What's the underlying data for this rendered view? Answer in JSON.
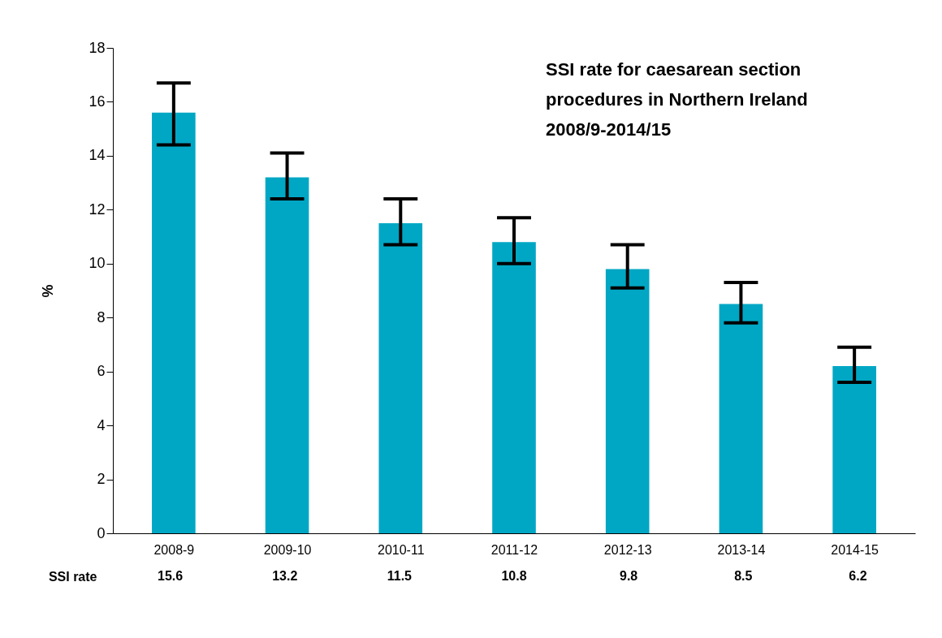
{
  "chart_data": {
    "type": "bar",
    "title": "SSI rate for caesarean section procedures in Northern Ireland 2008/9-2014/15",
    "ylabel": "%",
    "categories": [
      "2008-9",
      "2009-10",
      "2010-11",
      "2011-12",
      "2012-13",
      "2013-14",
      "2014-15"
    ],
    "series": [
      {
        "name": "SSI rate",
        "color": "#00a7c4",
        "values": [
          15.6,
          13.2,
          11.5,
          10.8,
          9.8,
          8.5,
          6.2
        ],
        "errors": [
          [
            14.4,
            16.7
          ],
          [
            12.4,
            14.1
          ],
          [
            10.7,
            12.4
          ],
          [
            10.0,
            11.7
          ],
          [
            9.1,
            10.7
          ],
          [
            7.8,
            9.3
          ],
          [
            5.6,
            6.9
          ]
        ]
      }
    ],
    "ylim": [
      0,
      18
    ],
    "yticks": [
      0,
      2,
      4,
      6,
      8,
      10,
      12,
      14,
      16,
      18
    ],
    "grid": false,
    "legend": false,
    "data_labels": true
  }
}
